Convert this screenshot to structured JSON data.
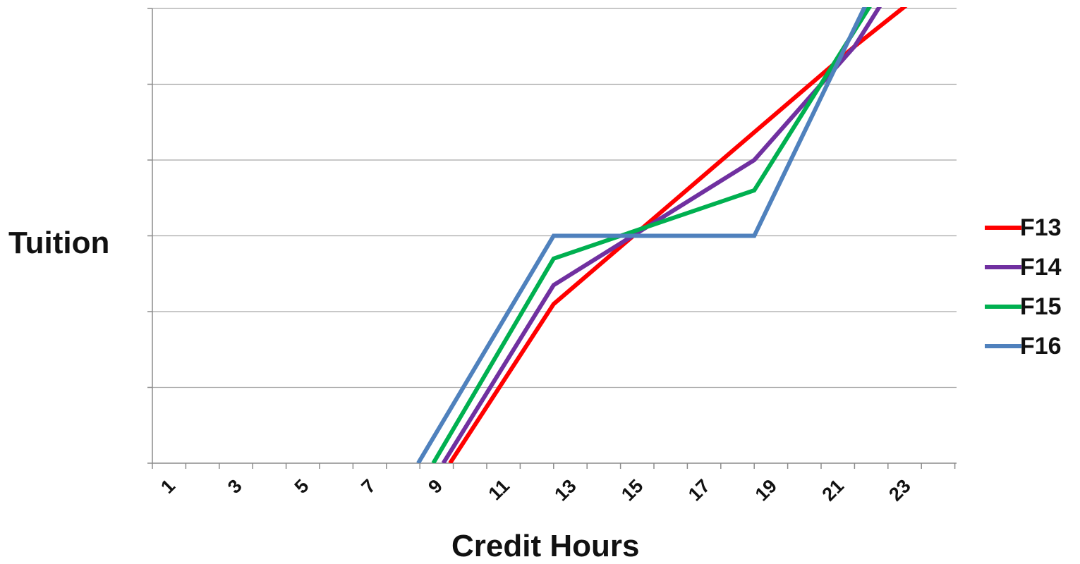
{
  "chart_data": {
    "type": "line",
    "xlabel": "Credit Hours",
    "ylabel": "Tuition",
    "x_tick_labels": [
      "1",
      "3",
      "5",
      "7",
      "9",
      "11",
      "13",
      "15",
      "17",
      "19",
      "21",
      "23"
    ],
    "xlim": [
      1,
      25
    ],
    "grid": true,
    "legend_position": "right",
    "series": [
      {
        "name": "F13",
        "color": "#ff0000",
        "points": [
          [
            9.4,
            0
          ],
          [
            12.5,
            2.1
          ],
          [
            21.5,
            5.5
          ],
          [
            23.5,
            6.2
          ]
        ]
      },
      {
        "name": "F14",
        "color": "#7030a0",
        "points": [
          [
            9.2,
            0
          ],
          [
            12.5,
            2.35
          ],
          [
            18.5,
            4.0
          ],
          [
            21.5,
            5.5
          ],
          [
            22.5,
            6.2
          ]
        ]
      },
      {
        "name": "F15",
        "color": "#00b050",
        "points": [
          [
            8.9,
            0
          ],
          [
            12.5,
            2.7
          ],
          [
            18.5,
            3.6
          ],
          [
            22.2,
            6.2
          ]
        ]
      },
      {
        "name": "F16",
        "color": "#4f81bd",
        "points": [
          [
            8.45,
            0
          ],
          [
            12.5,
            3.0
          ],
          [
            18.5,
            3.0
          ],
          [
            22.0,
            6.2
          ]
        ]
      }
    ]
  }
}
